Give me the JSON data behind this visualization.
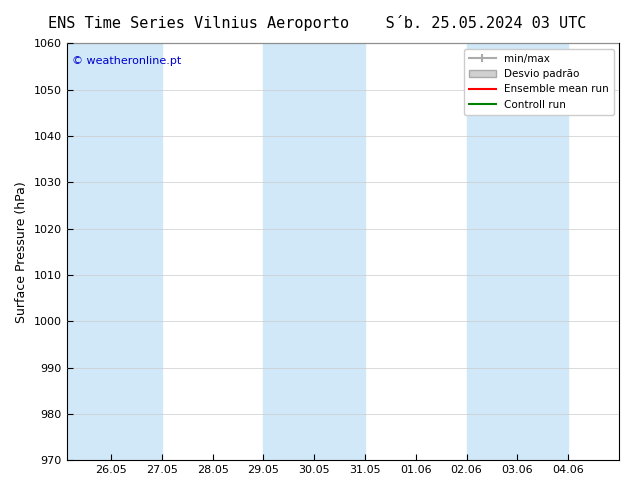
{
  "title_left": "ENS Time Series Vilnius Aeroporto",
  "title_right": "S´b. 25.05.2024 03 UTC",
  "ylabel": "Surface Pressure (hPa)",
  "ylim": [
    970,
    1060
  ],
  "yticks": [
    970,
    980,
    990,
    1000,
    1010,
    1020,
    1030,
    1040,
    1050,
    1060
  ],
  "watermark": "© weatheronline.pt",
  "watermark_color": "#0000cc",
  "bg_color": "#ffffff",
  "plot_bg_color": "#ffffff",
  "band_color": "#d0e8f8",
  "band_alpha": 0.85,
  "legend_entries": [
    "min/max",
    "Desvio padrão",
    "Ensemble mean run",
    "Controll run"
  ],
  "legend_colors": [
    "#aaaaaa",
    "#cccccc",
    "#ff0000",
    "#008000"
  ],
  "x_start": "2024-05-25",
  "x_end": "2024-06-05",
  "xtick_labels": [
    "26.05",
    "27.05",
    "28.05",
    "29.05",
    "30.05",
    "31.05",
    "01.06",
    "02.06",
    "03.06",
    "04.06"
  ],
  "band_positions": [
    0,
    1,
    4,
    5,
    8,
    9
  ],
  "title_fontsize": 11,
  "axis_fontsize": 9,
  "tick_fontsize": 8
}
